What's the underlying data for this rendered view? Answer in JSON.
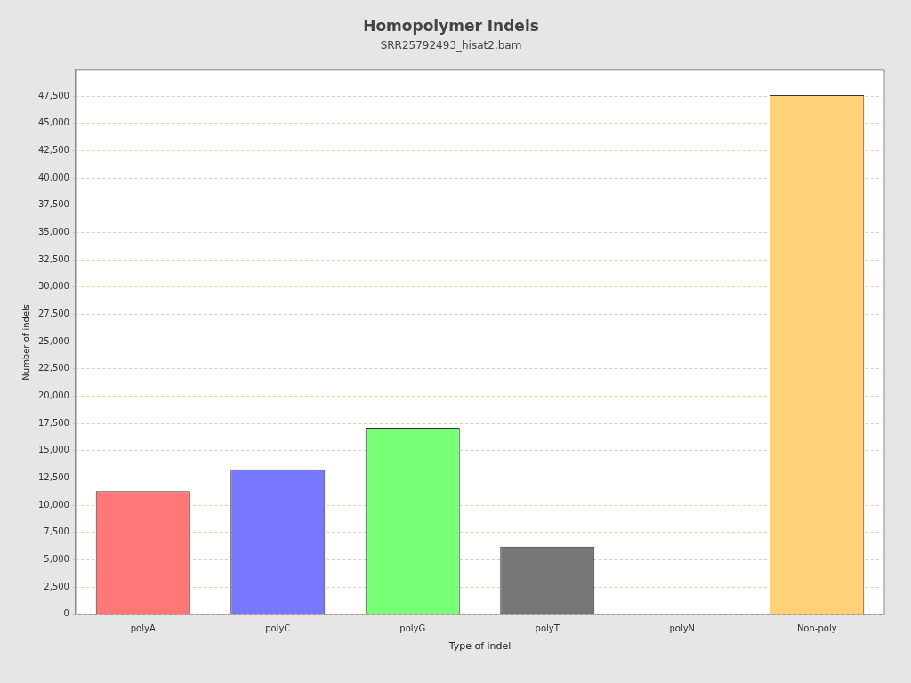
{
  "chart_data": {
    "type": "bar",
    "title": "Homopolymer Indels",
    "subtitle": "SRR25792493_hisat2.bam",
    "xlabel": "Type of indel",
    "ylabel": "Number of indels",
    "categories": [
      "polyA",
      "polyC",
      "polyG",
      "polyT",
      "polyN",
      "Non-poly"
    ],
    "values": [
      11300,
      13300,
      17100,
      6200,
      0,
      47600
    ],
    "colors": [
      "#ff7777",
      "#7777ff",
      "#77ff77",
      "#777777",
      "#7777ff",
      "#ffd277"
    ],
    "ylim": [
      0,
      49900
    ],
    "yticks": [
      0,
      {
        "value": 2500,
        "label": "2,500"
      },
      {
        "value": 5000,
        "label": "5,000"
      },
      {
        "value": 7500,
        "label": "7,500"
      },
      {
        "value": 10000,
        "label": "10,000"
      },
      {
        "value": 12500,
        "label": "12,500"
      },
      {
        "value": 15000,
        "label": "15,000"
      },
      {
        "value": 17500,
        "label": "17,500"
      },
      {
        "value": 20000,
        "label": "20,000"
      },
      {
        "value": 22500,
        "label": "22,500"
      },
      {
        "value": 25000,
        "label": "25,000"
      },
      {
        "value": 27500,
        "label": "27,500"
      },
      {
        "value": 30000,
        "label": "30,000"
      },
      {
        "value": 32500,
        "label": "32,500"
      },
      {
        "value": 35000,
        "label": "35,000"
      },
      {
        "value": 37500,
        "label": "37,500"
      },
      {
        "value": 40000,
        "label": "40,000"
      },
      {
        "value": 42500,
        "label": "42,500"
      },
      {
        "value": 45000,
        "label": "45,000"
      },
      {
        "value": 47500,
        "label": "47,500"
      }
    ],
    "grid": "y",
    "legend": false
  }
}
